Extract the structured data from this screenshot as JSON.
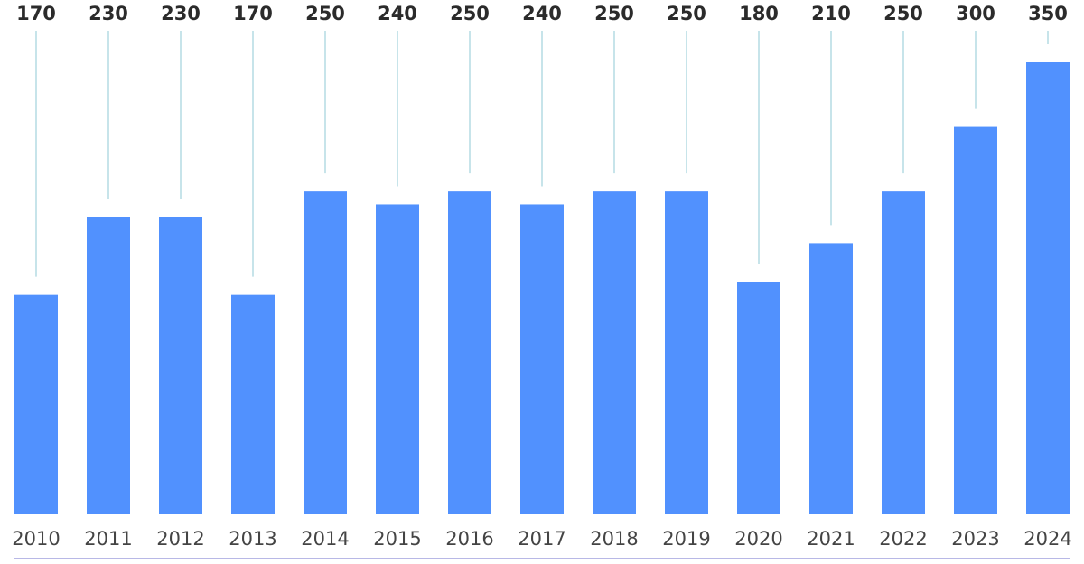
{
  "chart_data": {
    "type": "bar",
    "categories": [
      "2010",
      "2011",
      "2012",
      "2013",
      "2014",
      "2015",
      "2016",
      "2017",
      "2018",
      "2019",
      "2020",
      "2021",
      "2022",
      "2023",
      "2024"
    ],
    "values": [
      170,
      230,
      230,
      170,
      250,
      240,
      250,
      240,
      250,
      250,
      180,
      210,
      250,
      300,
      350
    ],
    "value_labels": [
      "170",
      "230",
      "230",
      "170",
      "250",
      "240",
      "250",
      "240",
      "250",
      "250",
      "180",
      "210",
      "250",
      "300",
      "350"
    ],
    "title": "",
    "xlabel": "",
    "ylabel": "",
    "ylim": [
      0,
      350
    ],
    "grid": false,
    "legend": "none",
    "colors": {
      "bar": "#5191fe",
      "leader_line": "#8fc9d6",
      "axis_line": "#b8b8e6",
      "value_text": "#2b2b2b",
      "tick_text": "#444444"
    }
  }
}
